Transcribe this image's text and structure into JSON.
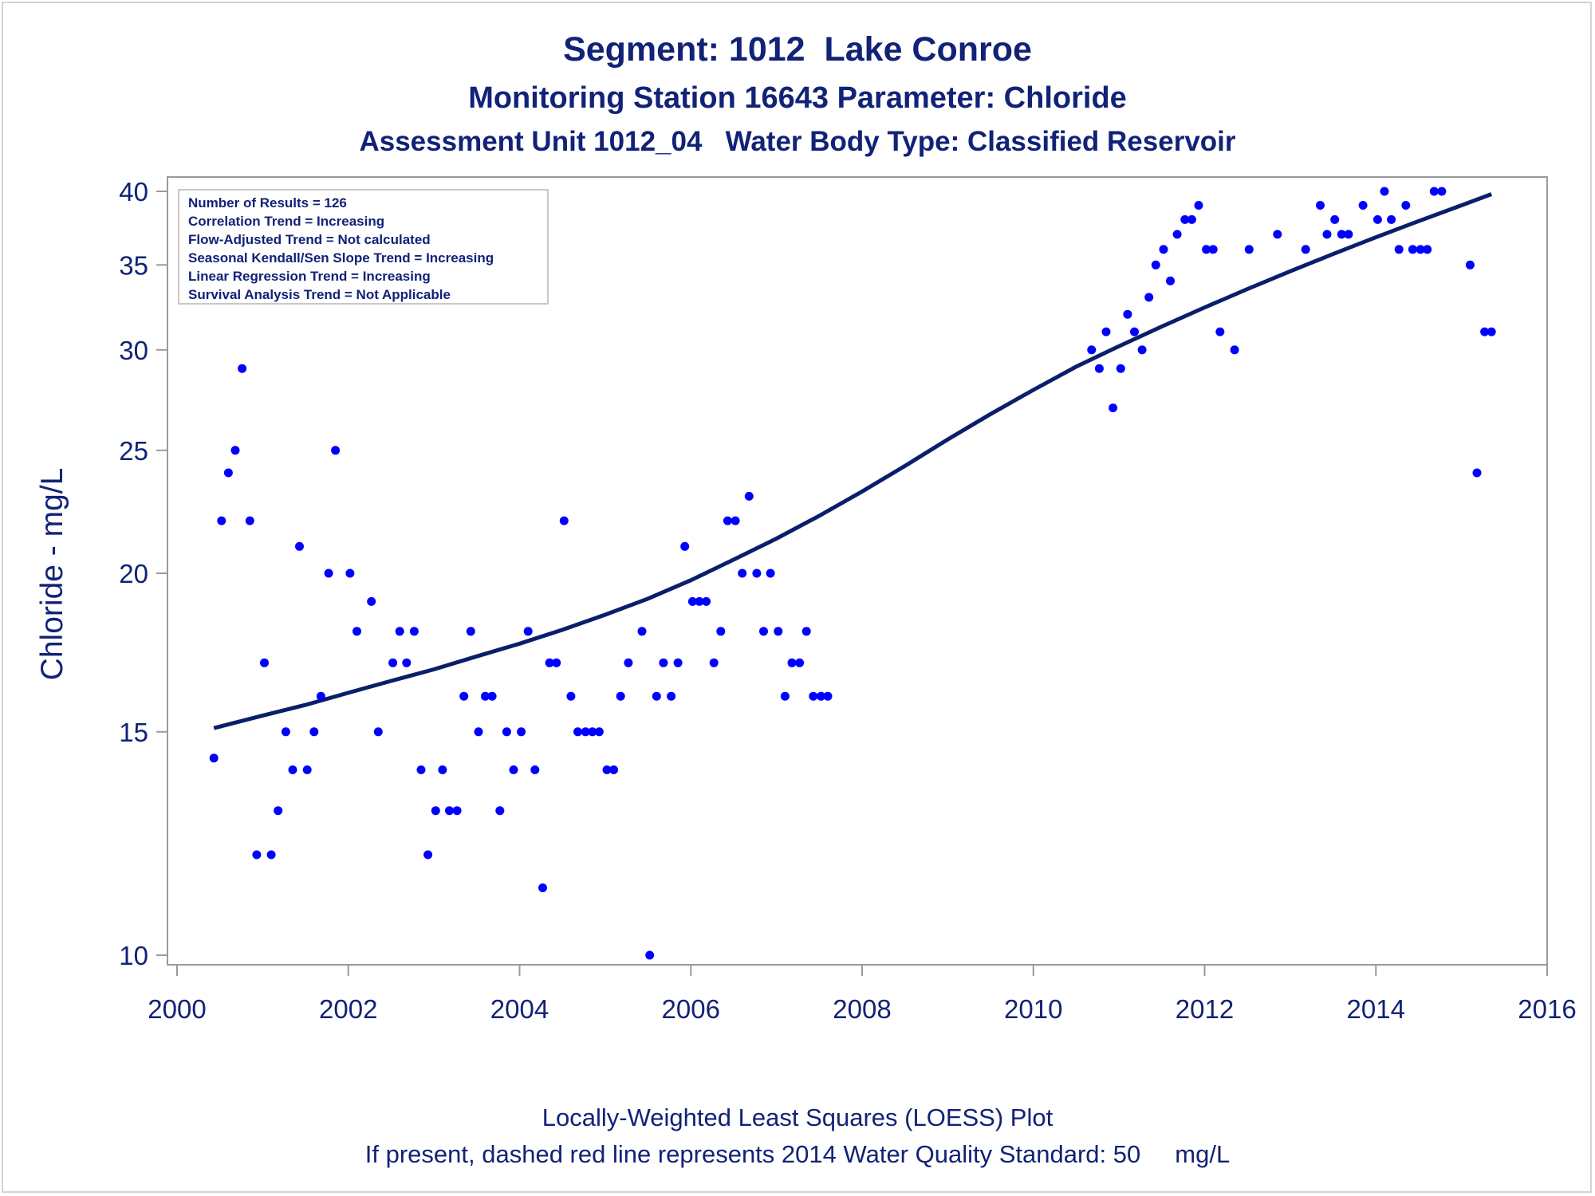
{
  "titles": {
    "line1": "Segment: 1012  Lake Conroe",
    "line2": "Monitoring Station 16643 Parameter: Chloride",
    "line3": "Assessment Unit 1012_04   Water Body Type: Classified Reservoir"
  },
  "stats_box": [
    "Number of Results = 126",
    "Correlation Trend = Increasing",
    "Flow-Adjusted Trend = Not calculated",
    "Seasonal Kendall/Sen Slope Trend = Increasing",
    "Linear Regression Trend = Increasing",
    "Survival Analysis Trend = Not Applicable"
  ],
  "footnotes": {
    "line1": "Locally-Weighted Least Squares (LOESS) Plot",
    "line2": "If present, dashed red line represents 2014 Water Quality Standard: 50     mg/L"
  },
  "colors": {
    "text": "#112277",
    "points": "#0000ff",
    "loess_line": "#0a1f6b",
    "axis": "#9a9a9a"
  },
  "chart_data": {
    "type": "scatter",
    "ylabel": "Chloride - mg/L",
    "xlabel": "",
    "y_scale": "log",
    "xlim": [
      2000,
      2016
    ],
    "ylim": [
      10,
      40
    ],
    "x_ticks": [
      "2000",
      "2002",
      "2004",
      "2006",
      "2008",
      "2010",
      "2012",
      "2014",
      "2016"
    ],
    "y_ticks": [
      "10",
      "15",
      "20",
      "25",
      "30",
      "35",
      "40"
    ],
    "series": [
      {
        "type": "scatter",
        "points": [
          [
            2000.43,
            14.3
          ],
          [
            2000.52,
            22
          ],
          [
            2000.6,
            24
          ],
          [
            2000.68,
            25
          ],
          [
            2000.76,
            29
          ],
          [
            2000.85,
            22
          ],
          [
            2000.93,
            12
          ],
          [
            2001.02,
            17
          ],
          [
            2001.1,
            12
          ],
          [
            2001.18,
            13
          ],
          [
            2001.27,
            15
          ],
          [
            2001.35,
            14
          ],
          [
            2001.43,
            21
          ],
          [
            2001.52,
            14
          ],
          [
            2001.6,
            15
          ],
          [
            2001.68,
            16
          ],
          [
            2001.77,
            20
          ],
          [
            2001.85,
            25
          ],
          [
            2002.02,
            20
          ],
          [
            2002.1,
            18
          ],
          [
            2002.27,
            19
          ],
          [
            2002.35,
            15
          ],
          [
            2002.52,
            17
          ],
          [
            2002.6,
            18
          ],
          [
            2002.68,
            17
          ],
          [
            2002.77,
            18
          ],
          [
            2002.85,
            14
          ],
          [
            2002.93,
            12
          ],
          [
            2003.02,
            13
          ],
          [
            2003.1,
            14
          ],
          [
            2003.18,
            13
          ],
          [
            2003.27,
            13
          ],
          [
            2003.35,
            16
          ],
          [
            2003.43,
            18
          ],
          [
            2003.52,
            15
          ],
          [
            2003.6,
            16
          ],
          [
            2003.68,
            16
          ],
          [
            2003.77,
            13
          ],
          [
            2003.85,
            15
          ],
          [
            2003.93,
            14
          ],
          [
            2004.02,
            15
          ],
          [
            2004.1,
            18
          ],
          [
            2004.18,
            14
          ],
          [
            2004.27,
            11.3
          ],
          [
            2004.35,
            17
          ],
          [
            2004.43,
            17
          ],
          [
            2004.52,
            22
          ],
          [
            2004.6,
            16
          ],
          [
            2004.68,
            15
          ],
          [
            2004.77,
            15
          ],
          [
            2004.85,
            15
          ],
          [
            2004.93,
            15
          ],
          [
            2005.02,
            14
          ],
          [
            2005.1,
            14
          ],
          [
            2005.18,
            16
          ],
          [
            2005.27,
            17
          ],
          [
            2005.43,
            18
          ],
          [
            2005.52,
            10
          ],
          [
            2005.6,
            16
          ],
          [
            2005.68,
            17
          ],
          [
            2005.77,
            16
          ],
          [
            2005.85,
            17
          ],
          [
            2005.93,
            21
          ],
          [
            2006.02,
            19
          ],
          [
            2006.1,
            19
          ],
          [
            2006.18,
            19
          ],
          [
            2006.27,
            17
          ],
          [
            2006.35,
            18
          ],
          [
            2006.43,
            22
          ],
          [
            2006.52,
            22
          ],
          [
            2006.6,
            20
          ],
          [
            2006.68,
            23
          ],
          [
            2006.77,
            20
          ],
          [
            2006.85,
            18
          ],
          [
            2006.93,
            20
          ],
          [
            2007.02,
            18
          ],
          [
            2007.1,
            16
          ],
          [
            2007.18,
            17
          ],
          [
            2007.27,
            17
          ],
          [
            2007.35,
            18
          ],
          [
            2007.43,
            16
          ],
          [
            2007.52,
            16
          ],
          [
            2007.6,
            16
          ],
          [
            2010.68,
            30
          ],
          [
            2010.77,
            29
          ],
          [
            2010.85,
            31
          ],
          [
            2010.93,
            27
          ],
          [
            2011.02,
            29
          ],
          [
            2011.1,
            32
          ],
          [
            2011.18,
            31
          ],
          [
            2011.27,
            30
          ],
          [
            2011.35,
            33
          ],
          [
            2011.43,
            35
          ],
          [
            2011.52,
            36
          ],
          [
            2011.6,
            34
          ],
          [
            2011.68,
            37
          ],
          [
            2011.77,
            38
          ],
          [
            2011.85,
            38
          ],
          [
            2011.93,
            39
          ],
          [
            2012.02,
            36
          ],
          [
            2012.1,
            36
          ],
          [
            2012.18,
            31
          ],
          [
            2012.35,
            30
          ],
          [
            2012.52,
            36
          ],
          [
            2012.85,
            37
          ],
          [
            2013.18,
            36
          ],
          [
            2013.35,
            39
          ],
          [
            2013.43,
            37
          ],
          [
            2013.52,
            38
          ],
          [
            2013.6,
            37
          ],
          [
            2013.68,
            37
          ],
          [
            2013.85,
            39
          ],
          [
            2014.02,
            38
          ],
          [
            2014.1,
            40
          ],
          [
            2014.18,
            38
          ],
          [
            2014.27,
            36
          ],
          [
            2014.35,
            39
          ],
          [
            2014.43,
            36
          ],
          [
            2014.52,
            36
          ],
          [
            2014.6,
            36
          ],
          [
            2014.68,
            40
          ],
          [
            2014.77,
            40
          ],
          [
            2015.1,
            35
          ],
          [
            2015.18,
            24
          ],
          [
            2015.27,
            31
          ],
          [
            2015.35,
            31
          ]
        ]
      },
      {
        "type": "line",
        "points": [
          [
            2000.43,
            15.1
          ],
          [
            2001.0,
            15.45
          ],
          [
            2001.5,
            15.75
          ],
          [
            2002.0,
            16.1
          ],
          [
            2002.5,
            16.45
          ],
          [
            2003.0,
            16.8
          ],
          [
            2003.5,
            17.2
          ],
          [
            2004.0,
            17.6
          ],
          [
            2004.5,
            18.05
          ],
          [
            2005.0,
            18.55
          ],
          [
            2005.5,
            19.1
          ],
          [
            2006.0,
            19.75
          ],
          [
            2006.5,
            20.5
          ],
          [
            2007.0,
            21.3
          ],
          [
            2007.5,
            22.2
          ],
          [
            2008.0,
            23.2
          ],
          [
            2008.5,
            24.3
          ],
          [
            2009.0,
            25.5
          ],
          [
            2009.5,
            26.7
          ],
          [
            2010.0,
            27.9
          ],
          [
            2010.5,
            29.1
          ],
          [
            2011.0,
            30.2
          ],
          [
            2011.5,
            31.3
          ],
          [
            2012.0,
            32.4
          ],
          [
            2012.5,
            33.5
          ],
          [
            2013.0,
            34.6
          ],
          [
            2013.5,
            35.7
          ],
          [
            2014.0,
            36.8
          ],
          [
            2014.5,
            37.9
          ],
          [
            2015.0,
            39.0
          ],
          [
            2015.35,
            39.8
          ]
        ]
      }
    ]
  }
}
